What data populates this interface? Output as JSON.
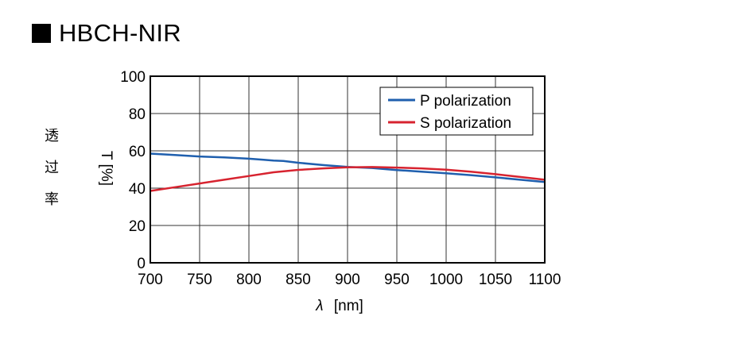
{
  "title": "HBCH-NIR",
  "ylabel_jp": [
    "透",
    "过",
    "率"
  ],
  "chart_data": {
    "type": "line",
    "xlabel_symbol": "λ",
    "xlabel_unit": "[nm]",
    "ylabel": "T [%]",
    "xlim": [
      700,
      1100
    ],
    "ylim": [
      0,
      100
    ],
    "xticks": [
      700,
      750,
      800,
      850,
      900,
      950,
      1000,
      1050,
      1100
    ],
    "yticks": [
      0,
      20,
      40,
      60,
      80,
      100
    ],
    "grid": true,
    "legend_position": "top-right",
    "series": [
      {
        "name": "P polarization",
        "color": "#1f5fae",
        "x": [
          700,
          725,
          750,
          775,
          800,
          815,
          825,
          835,
          850,
          875,
          900,
          925,
          950,
          975,
          1000,
          1025,
          1050,
          1075,
          1100
        ],
        "y": [
          58.5,
          57.8,
          57.0,
          56.5,
          55.8,
          55.2,
          54.8,
          54.6,
          53.6,
          52.4,
          51.4,
          50.8,
          49.7,
          48.8,
          48.0,
          47.0,
          45.8,
          44.5,
          43.3
        ]
      },
      {
        "name": "S polarization",
        "color": "#d7232f",
        "x": [
          700,
          725,
          750,
          775,
          800,
          825,
          850,
          875,
          900,
          925,
          950,
          975,
          1000,
          1025,
          1050,
          1075,
          1100
        ],
        "y": [
          38.5,
          40.5,
          42.5,
          44.5,
          46.5,
          48.5,
          49.8,
          50.6,
          51.2,
          51.3,
          51.0,
          50.6,
          49.9,
          48.8,
          47.5,
          46.0,
          44.5
        ]
      }
    ]
  }
}
